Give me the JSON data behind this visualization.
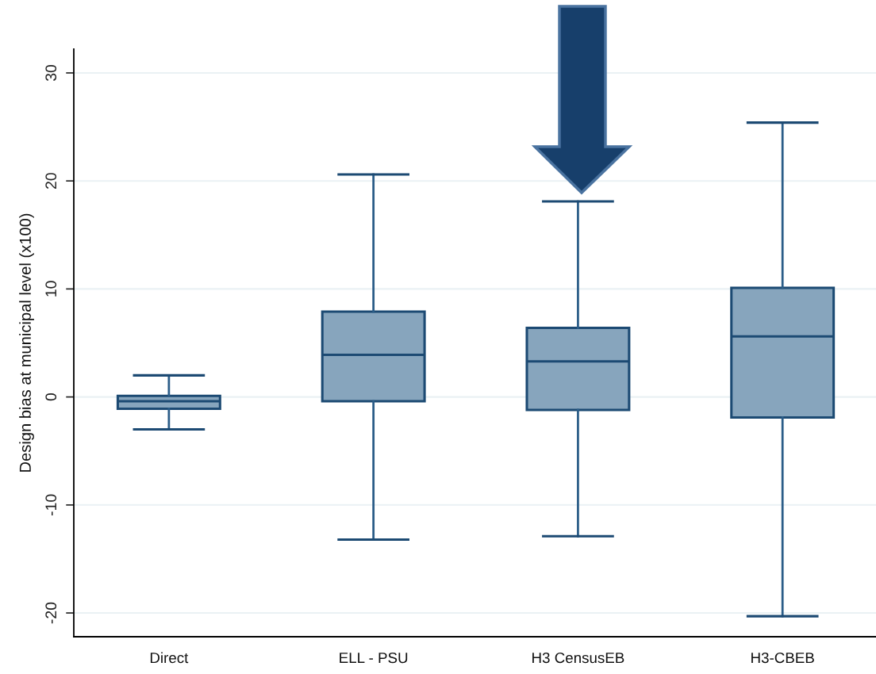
{
  "chart_data": {
    "type": "box",
    "ylabel": "Design bias at municipal level (x100)",
    "categories": [
      "Direct",
      "ELL - PSU",
      "H3 CensusEB",
      "H3-CBEB"
    ],
    "series": [
      {
        "color": "#87a5bd",
        "boxes": [
          {
            "low": -3.0,
            "q1": -1.1,
            "median": -0.4,
            "q3": 0.1,
            "high": 2.0
          },
          {
            "low": -13.2,
            "q1": -0.4,
            "median": 3.9,
            "q3": 7.9,
            "high": 20.6
          },
          {
            "low": -12.9,
            "q1": -1.2,
            "median": 3.3,
            "q3": 6.4,
            "high": 18.1
          },
          {
            "low": -20.3,
            "q1": -1.9,
            "median": 5.6,
            "q3": 10.1,
            "high": 25.4
          }
        ]
      }
    ],
    "ylim": [
      -22.2,
      32.2
    ],
    "yticks": [
      -20,
      -10,
      0,
      10,
      20,
      30
    ],
    "grid": "y"
  }
}
